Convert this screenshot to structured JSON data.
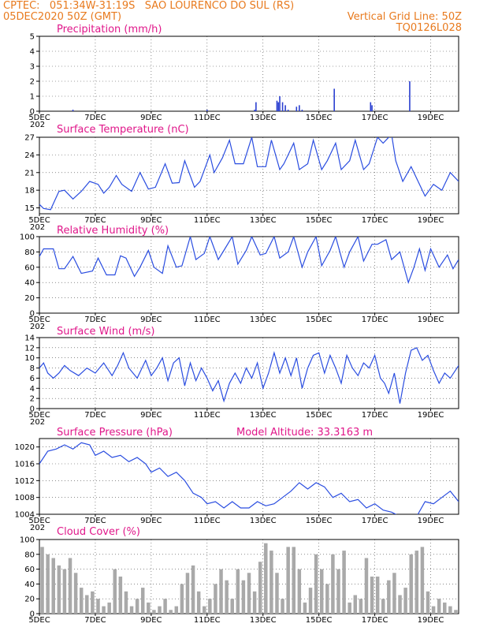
{
  "header": {
    "line1_left": "CPTEC:   051:34W-31:19S   SAO LOURENCO DO SUL (RS)",
    "line2_left": "05DEC2020 50Z (GMT)",
    "line2_right": "Vertical Grid Line: 50Z",
    "line3_right": "TQ0126L028"
  },
  "colors": {
    "title": "#e0178a",
    "header": "#e87a1e",
    "line": "#2a4de0",
    "bar": "#2a3fd0",
    "cloud": "#a9a9a9"
  },
  "x_ticks": [
    "5DEC",
    "7DEC",
    "9DEC",
    "11DEC",
    "13DEC",
    "15DEC",
    "17DEC",
    "19DEC"
  ],
  "x_cutoff_label": "202",
  "chart_data": [
    {
      "type": "bar",
      "title": "Precipitation  (mm/h)",
      "ylim": [
        0,
        5
      ],
      "yticks": [
        "0",
        "1",
        "2",
        "3",
        "4",
        "5"
      ],
      "x_day": [
        6.2,
        11.0,
        12.7,
        12.75,
        13.5,
        13.55,
        13.6,
        13.7,
        13.8,
        13.9,
        14.2,
        14.3,
        14.4,
        15.55,
        16.85,
        16.9,
        18.25
      ],
      "values": [
        0.1,
        0.1,
        0.1,
        0.6,
        0.7,
        0.6,
        1.0,
        0.6,
        0.4,
        0.1,
        0.3,
        0.4,
        0.1,
        1.5,
        0.6,
        0.4,
        2.0
      ]
    },
    {
      "type": "line",
      "title": "Surface Temperature (nC)",
      "ylim": [
        14,
        27
      ],
      "yticks": [
        "15",
        "18",
        "21",
        "24",
        "27"
      ],
      "x_day": [
        5.0,
        5.15,
        5.4,
        5.7,
        5.9,
        6.2,
        6.5,
        6.8,
        7.1,
        7.3,
        7.5,
        7.75,
        7.95,
        8.3,
        8.6,
        8.9,
        9.15,
        9.5,
        9.75,
        10.0,
        10.2,
        10.55,
        10.75,
        11.1,
        11.25,
        11.55,
        11.8,
        12.0,
        12.3,
        12.6,
        12.8,
        13.1,
        13.3,
        13.6,
        13.75,
        14.1,
        14.3,
        14.6,
        14.8,
        15.1,
        15.3,
        15.6,
        15.8,
        16.1,
        16.3,
        16.6,
        16.8,
        17.1,
        17.3,
        17.6,
        17.75,
        18.0,
        18.3,
        18.5,
        18.8,
        19.1,
        19.4,
        19.7,
        20.0
      ],
      "values": [
        15.6,
        14.9,
        14.7,
        17.8,
        18.0,
        16.5,
        17.8,
        19.5,
        19.0,
        17.5,
        18.5,
        20.5,
        19.0,
        17.8,
        21.0,
        18.2,
        18.5,
        22.5,
        19.2,
        19.3,
        23.0,
        18.5,
        19.5,
        24.0,
        21.0,
        23.5,
        26.5,
        22.5,
        22.5,
        27.0,
        22.0,
        22.0,
        26.5,
        21.5,
        22.5,
        26.0,
        21.5,
        22.5,
        26.5,
        21.5,
        23.0,
        26.0,
        21.5,
        23.0,
        26.5,
        21.5,
        22.5,
        27.0,
        26.0,
        27.5,
        23.0,
        19.5,
        22.0,
        20.0,
        17.0,
        19.0,
        18.0,
        21.0,
        19.5
      ]
    },
    {
      "type": "line",
      "title": "Relative Humidity (%)",
      "ylim": [
        0,
        100
      ],
      "yticks": [
        "0",
        "20",
        "40",
        "60",
        "80",
        "100"
      ],
      "x_day": [
        5.0,
        5.15,
        5.5,
        5.7,
        5.9,
        6.2,
        6.5,
        6.9,
        7.1,
        7.4,
        7.7,
        7.9,
        8.1,
        8.4,
        8.6,
        8.9,
        9.1,
        9.4,
        9.6,
        9.9,
        10.1,
        10.4,
        10.6,
        10.9,
        11.1,
        11.4,
        11.6,
        11.9,
        12.1,
        12.4,
        12.6,
        12.9,
        13.1,
        13.4,
        13.6,
        13.9,
        14.1,
        14.4,
        14.6,
        14.9,
        15.1,
        15.4,
        15.6,
        15.9,
        16.1,
        16.4,
        16.6,
        16.9,
        17.1,
        17.4,
        17.6,
        17.9,
        18.2,
        18.4,
        18.6,
        18.8,
        19.0,
        19.3,
        19.6,
        19.8,
        20.0
      ],
      "values": [
        74,
        84,
        84,
        58,
        58,
        74,
        52,
        55,
        72,
        50,
        50,
        75,
        72,
        48,
        60,
        82,
        60,
        52,
        88,
        60,
        62,
        100,
        70,
        78,
        100,
        70,
        82,
        100,
        64,
        82,
        100,
        76,
        78,
        100,
        72,
        80,
        100,
        60,
        80,
        100,
        62,
        82,
        100,
        60,
        80,
        100,
        68,
        90,
        90,
        96,
        70,
        80,
        40,
        60,
        84,
        56,
        84,
        60,
        76,
        58,
        70
      ]
    },
    {
      "type": "line",
      "title": "Surface Wind  (m/s)",
      "ylim": [
        0,
        14
      ],
      "yticks": [
        "0",
        "2",
        "4",
        "6",
        "8",
        "10",
        "12",
        "14"
      ],
      "x_day": [
        5.0,
        5.15,
        5.3,
        5.5,
        5.7,
        5.9,
        6.1,
        6.4,
        6.7,
        7.0,
        7.3,
        7.6,
        7.8,
        8.0,
        8.2,
        8.5,
        8.8,
        9.0,
        9.2,
        9.4,
        9.6,
        9.8,
        10.0,
        10.2,
        10.4,
        10.6,
        10.8,
        11.0,
        11.2,
        11.4,
        11.6,
        11.8,
        12.0,
        12.2,
        12.4,
        12.6,
        12.8,
        13.0,
        13.2,
        13.4,
        13.6,
        13.8,
        14.0,
        14.2,
        14.4,
        14.6,
        14.8,
        15.0,
        15.2,
        15.4,
        15.6,
        15.8,
        16.0,
        16.2,
        16.4,
        16.6,
        16.8,
        17.0,
        17.2,
        17.35,
        17.5,
        17.7,
        17.9,
        18.1,
        18.3,
        18.5,
        18.7,
        18.9,
        19.1,
        19.3,
        19.5,
        19.7,
        20.0
      ],
      "values": [
        8.0,
        9.0,
        7.0,
        6.0,
        7.0,
        8.5,
        7.5,
        6.5,
        8.0,
        7.0,
        9.0,
        6.5,
        8.5,
        11.0,
        8.0,
        6.0,
        9.5,
        6.5,
        8.0,
        10.0,
        5.5,
        9.0,
        10.0,
        4.5,
        9.0,
        5.5,
        8.0,
        6.0,
        3.5,
        5.5,
        1.5,
        5.0,
        7.0,
        5.0,
        8.0,
        6.0,
        9.0,
        4.0,
        7.0,
        11.0,
        7.0,
        10.0,
        6.5,
        10.0,
        4.0,
        8.0,
        10.5,
        11.0,
        7.0,
        10.5,
        8.0,
        5.0,
        10.5,
        8.0,
        6.5,
        9.0,
        8.0,
        10.5,
        6.0,
        5.0,
        3.0,
        7.0,
        1.0,
        7.0,
        11.5,
        12.0,
        9.5,
        10.5,
        7.5,
        5.0,
        7.0,
        6.0,
        8.5
      ]
    },
    {
      "type": "line",
      "title": "Surface Pressure (hPa)",
      "annotation": "Model Altitude: 33.3163 m",
      "ylim": [
        1004,
        1022
      ],
      "yticks": [
        "1004",
        "1008",
        "1012",
        "1016",
        "1020"
      ],
      "x_day": [
        5.0,
        5.3,
        5.6,
        5.9,
        6.2,
        6.5,
        6.8,
        7.0,
        7.3,
        7.6,
        7.9,
        8.2,
        8.5,
        8.8,
        9.0,
        9.3,
        9.6,
        9.9,
        10.2,
        10.5,
        10.8,
        11.0,
        11.3,
        11.6,
        11.9,
        12.2,
        12.5,
        12.8,
        13.1,
        13.4,
        13.7,
        14.0,
        14.3,
        14.6,
        14.9,
        15.2,
        15.5,
        15.8,
        16.1,
        16.4,
        16.7,
        17.0,
        17.3,
        17.6,
        17.9,
        18.2,
        18.5,
        18.8,
        19.1,
        19.4,
        19.7,
        20.0
      ],
      "values": [
        1016,
        1019,
        1019.5,
        1020.5,
        1019.5,
        1021,
        1020.5,
        1018,
        1019,
        1017.5,
        1018,
        1016.5,
        1017.5,
        1016,
        1014,
        1015,
        1013,
        1014,
        1012,
        1009,
        1008,
        1006.5,
        1007,
        1005.5,
        1007,
        1005.5,
        1005.5,
        1007,
        1006,
        1006.5,
        1008,
        1009.5,
        1011.5,
        1010,
        1011.5,
        1010.5,
        1008,
        1009,
        1007,
        1007.5,
        1005.5,
        1006.5,
        1005,
        1004.5,
        1003.5,
        1003,
        1003.5,
        1007,
        1006.5,
        1008,
        1009.5,
        1007
      ]
    },
    {
      "type": "bar",
      "title": "Cloud Cover (%)",
      "ylim": [
        0,
        100
      ],
      "yticks": [
        "0",
        "20",
        "40",
        "60",
        "80",
        "100"
      ],
      "x_day": [
        5.1,
        5.3,
        5.5,
        5.7,
        5.9,
        6.1,
        6.3,
        6.5,
        6.7,
        6.9,
        7.1,
        7.3,
        7.5,
        7.7,
        7.9,
        8.1,
        8.3,
        8.5,
        8.7,
        8.9,
        9.1,
        9.3,
        9.5,
        9.7,
        9.9,
        10.1,
        10.3,
        10.5,
        10.7,
        10.9,
        11.1,
        11.3,
        11.5,
        11.7,
        11.9,
        12.1,
        12.3,
        12.5,
        12.7,
        12.9,
        13.1,
        13.3,
        13.5,
        13.7,
        13.9,
        14.1,
        14.3,
        14.5,
        14.7,
        14.9,
        15.1,
        15.3,
        15.5,
        15.7,
        15.9,
        16.1,
        16.3,
        16.5,
        16.7,
        16.9,
        17.1,
        17.3,
        17.5,
        17.7,
        17.9,
        18.1,
        18.3,
        18.5,
        18.7,
        18.9,
        19.1,
        19.3,
        19.5,
        19.7,
        19.9
      ],
      "values": [
        90,
        80,
        75,
        65,
        60,
        75,
        55,
        35,
        25,
        30,
        20,
        10,
        15,
        60,
        50,
        30,
        10,
        20,
        35,
        15,
        5,
        10,
        20,
        5,
        10,
        40,
        55,
        65,
        30,
        10,
        20,
        40,
        60,
        45,
        20,
        60,
        45,
        55,
        30,
        70,
        95,
        85,
        55,
        20,
        90,
        90,
        60,
        15,
        35,
        80,
        60,
        40,
        80,
        60,
        85,
        15,
        25,
        20,
        75,
        50,
        50,
        20,
        45,
        55,
        25,
        35,
        80,
        85,
        90,
        30,
        10,
        20,
        15,
        10,
        5
      ]
    }
  ]
}
